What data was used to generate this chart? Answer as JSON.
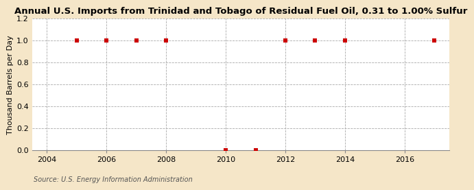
{
  "title": "Annual U.S. Imports from Trinidad and Tobago of Residual Fuel Oil, 0.31 to 1.00% Sulfur",
  "ylabel": "Thousand Barrels per Day",
  "source": "Source: U.S. Energy Information Administration",
  "fig_background": "#f5e6c8",
  "plot_background": "#ffffff",
  "x_data": [
    2005,
    2006,
    2007,
    2008,
    2010,
    2011,
    2012,
    2013,
    2014,
    2017
  ],
  "y_data": [
    1.0,
    1.0,
    1.0,
    1.0,
    0.0,
    0.0,
    1.0,
    1.0,
    1.0,
    1.0
  ],
  "marker_color": "#cc0000",
  "marker_size": 4,
  "xlim": [
    2003.5,
    2017.5
  ],
  "ylim": [
    0.0,
    1.2
  ],
  "yticks": [
    0.0,
    0.2,
    0.4,
    0.6,
    0.8,
    1.0,
    1.2
  ],
  "xticks": [
    2004,
    2006,
    2008,
    2010,
    2012,
    2014,
    2016
  ],
  "grid_color": "#aaaaaa",
  "title_fontsize": 9.5,
  "label_fontsize": 8,
  "tick_fontsize": 8,
  "source_fontsize": 7
}
